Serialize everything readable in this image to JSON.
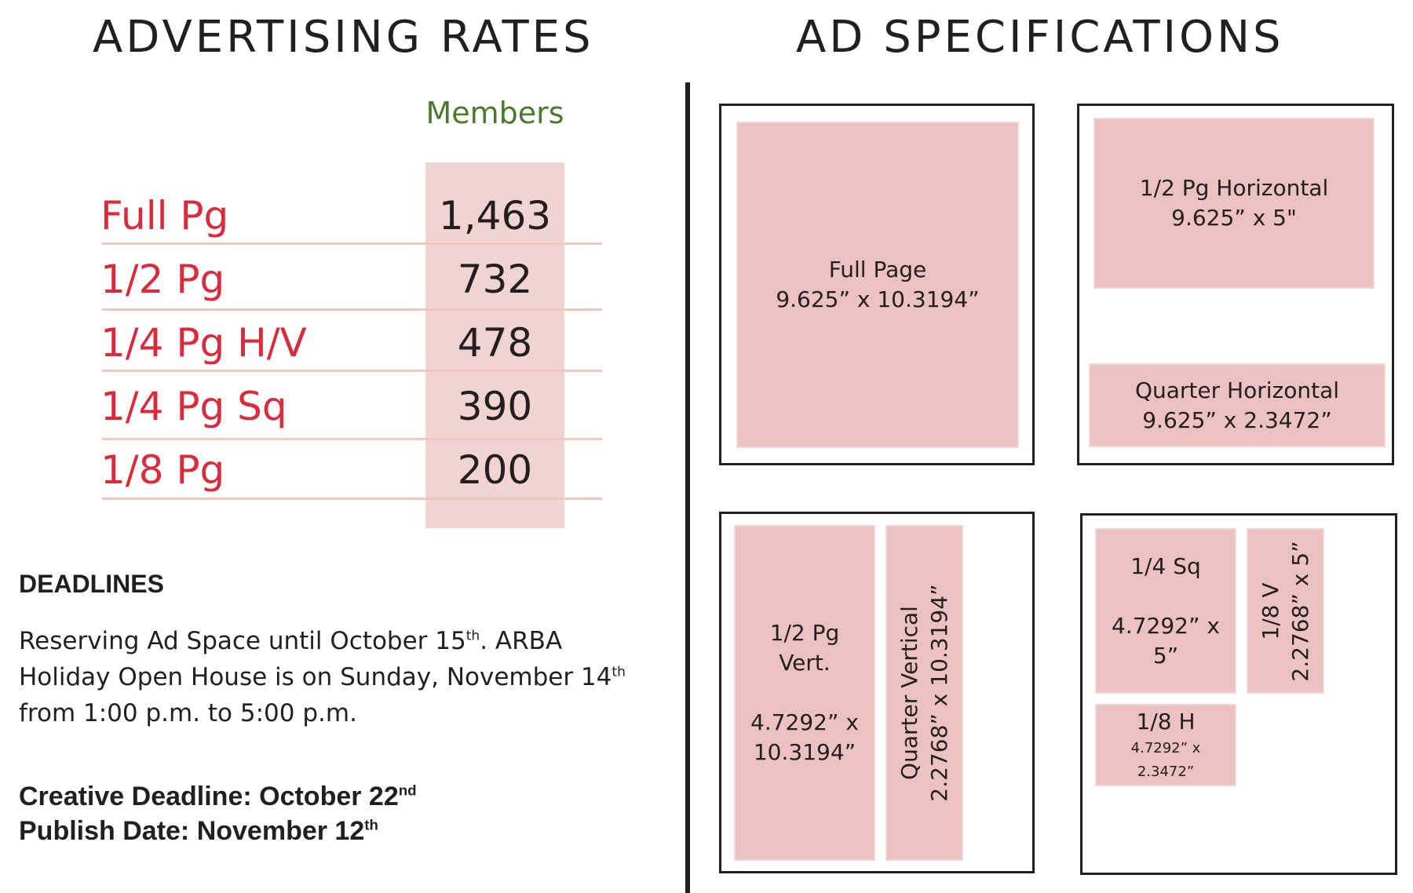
{
  "rates": {
    "title": "ADVERTISING RATES",
    "column_header": "Members",
    "rows": [
      {
        "label": "Full Pg",
        "value": "1,463"
      },
      {
        "label": "1/2 Pg",
        "value": "732"
      },
      {
        "label": "1/4 Pg H/V",
        "value": "478"
      },
      {
        "label": "1/4 Pg Sq",
        "value": "390"
      },
      {
        "label": "1/8 Pg",
        "value": "200"
      }
    ]
  },
  "deadlines": {
    "heading": "DEADLINES",
    "line1_pre": "Reserving Ad Space until October 15",
    "line1_sup": "th",
    "line1_post": ". ARBA",
    "line2_pre": "Holiday Open House is on Sunday, November 14",
    "line2_sup": "th",
    "line3": "from 1:00 p.m. to 5:00 p.m.",
    "creative_pre": "Creative Deadline: October 22",
    "creative_sup": "nd",
    "publish_pre": "Publish Date: November 12",
    "publish_sup": "th"
  },
  "specs": {
    "title": "AD SPECIFICATIONS",
    "full_page": {
      "name": "Full Page",
      "size": "9.625” x 10.3194”"
    },
    "half_horizontal": {
      "name": "1/2 Pg Horizontal",
      "size": "9.625” x 5\""
    },
    "quarter_horizontal": {
      "name": "Quarter Horizontal",
      "size": "9.625” x 2.3472”"
    },
    "half_vertical": {
      "name_line1": "1/2 Pg",
      "name_line2": "Vert.",
      "size_line1": "4.7292” x",
      "size_line2": "10.3194”"
    },
    "quarter_vertical": {
      "name": "Quarter Vertical",
      "size": "2.2768” x 10.3194”"
    },
    "quarter_square": {
      "name": "1/4 Sq",
      "size_line1": "4.7292” x",
      "size_line2": "5”"
    },
    "eighth_vertical": {
      "name": "1/8 V",
      "size": "2.2768” x 5”"
    },
    "eighth_horizontal": {
      "name": "1/8 H",
      "size_line1": "4.7292” x",
      "size_line2": "2.3472”"
    }
  },
  "colors": {
    "rate_label": "#da2b3d",
    "members_header": "#4a7a2c",
    "ad_fill": "#ebc1c1",
    "column_fill": "#f2d3d3"
  }
}
